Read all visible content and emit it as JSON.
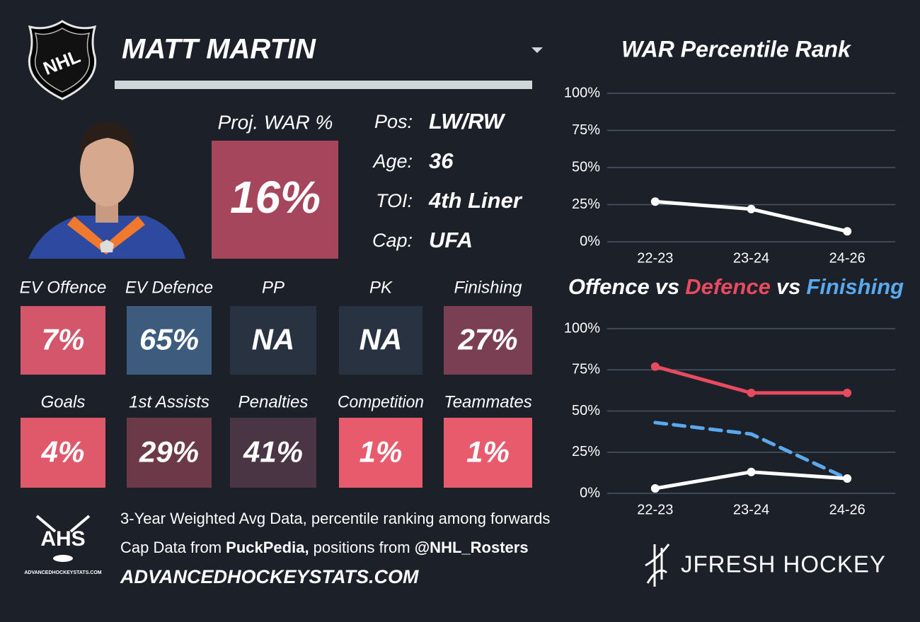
{
  "logo": {
    "text": "NHL"
  },
  "header": {
    "player_name": "MATT MARTIN"
  },
  "projection": {
    "label": "Proj. WAR %",
    "value": "16%",
    "color": "#a5465d"
  },
  "info": [
    {
      "label": "Pos:",
      "value": "LW/RW"
    },
    {
      "label": "Age:",
      "value": "36"
    },
    {
      "label": "TOI:",
      "value": "4th Liner"
    },
    {
      "label": "Cap:",
      "value": "UFA"
    }
  ],
  "tiles": [
    [
      {
        "label": "EV Offence",
        "value": "7%",
        "color": "#d4566a"
      },
      {
        "label": "EV Defence",
        "value": "65%",
        "color": "#3c5b7d"
      },
      {
        "label": "PP",
        "value": "NA",
        "color": "#283240"
      },
      {
        "label": "PK",
        "value": "NA",
        "color": "#283240"
      },
      {
        "label": "Finishing",
        "value": "27%",
        "color": "#7a3f52"
      }
    ],
    [
      {
        "label": "Goals",
        "value": "4%",
        "color": "#df596b"
      },
      {
        "label": "1st Assists",
        "value": "29%",
        "color": "#6c3948"
      },
      {
        "label": "Penalties",
        "value": "41%",
        "color": "#4a3545"
      },
      {
        "label": "Competition",
        "value": "1%",
        "color": "#e85b6c"
      },
      {
        "label": "Teammates",
        "value": "1%",
        "color": "#e85b6c"
      }
    ]
  ],
  "footer": {
    "logo_text": "AHS",
    "logo_caption": "ADVANCEDHOCKEYSTATS.COM",
    "lines": [
      [
        {
          "text": "3-Year Weighted Avg Data, percentile ranking among forwards",
          "bold": false
        }
      ],
      [
        {
          "text": "Cap Data from ",
          "bold": false
        },
        {
          "text": "PuckPedia,",
          "bold": true
        },
        {
          "text": " positions from ",
          "bold": false
        },
        {
          "text": "@NHL_Rosters",
          "bold": true
        }
      ],
      [
        {
          "text": "ADVANCEDHOCKEYSTATS.COM",
          "bold": true
        }
      ]
    ],
    "brand": "JFRESH HOCKEY"
  },
  "chart_data": [
    {
      "type": "line",
      "title": "WAR Percentile Rank",
      "categories": [
        "22-23",
        "23-24",
        "24-26"
      ],
      "values": [
        27,
        22,
        7
      ],
      "color": "#ffffff",
      "ylim": [
        0,
        100
      ],
      "yticks": [
        {
          "value": 0,
          "label": "0%"
        },
        {
          "value": 25,
          "label": "25%"
        },
        {
          "value": 50,
          "label": "50%"
        },
        {
          "value": 75,
          "label": "75%"
        },
        {
          "value": 100,
          "label": "100%"
        }
      ],
      "grid": true
    },
    {
      "type": "line",
      "title_separator": "vs",
      "categories": [
        "22-23",
        "23-24",
        "24-26"
      ],
      "series": [
        {
          "name": "Offence",
          "color": "#ffffff",
          "values": [
            3,
            13,
            9
          ],
          "line_style": "solid"
        },
        {
          "name": "Defence",
          "color": "#e84a5f",
          "values": [
            77,
            61,
            61
          ],
          "line_style": "solid"
        },
        {
          "name": "Finishing",
          "color": "#5aa8ee",
          "values": [
            43,
            36,
            9
          ],
          "line_style": "dashed"
        }
      ],
      "ylim": [
        0,
        100
      ],
      "yticks": [
        {
          "value": 0,
          "label": "0%"
        },
        {
          "value": 25,
          "label": "25%"
        },
        {
          "value": 50,
          "label": "50%"
        },
        {
          "value": 75,
          "label": "75%"
        },
        {
          "value": 100,
          "label": "100%"
        }
      ],
      "grid": true
    }
  ]
}
